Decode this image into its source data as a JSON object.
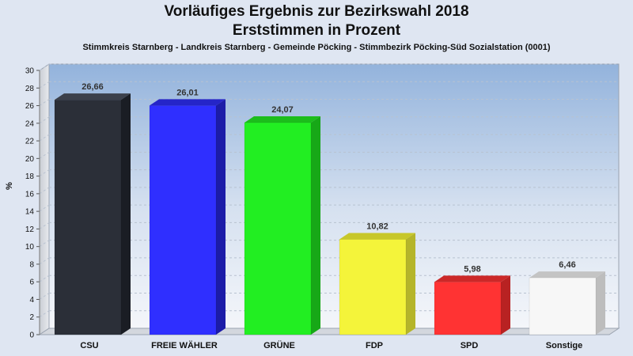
{
  "chart_data": {
    "type": "bar",
    "title": "Vorläufiges Ergebnis zur Bezirkswahl 2018",
    "title2": "Erststimmen in Prozent",
    "subtitle": "Stimmkreis Starnberg - Landkreis Starnberg - Gemeinde Pöcking - Stimmbezirk Pöcking-Süd Sozialstation (0001)",
    "ylabel": "%",
    "ylim": [
      0,
      30
    ],
    "yticks": [
      0,
      2,
      4,
      6,
      8,
      10,
      12,
      14,
      16,
      18,
      20,
      22,
      24,
      26,
      28,
      30
    ],
    "categories": [
      "CSU",
      "FREIE WÄHLER",
      "GRÜNE",
      "FDP",
      "SPD",
      "Sonstige"
    ],
    "values": [
      26.66,
      26.01,
      24.07,
      10.82,
      5.98,
      6.46
    ],
    "value_labels": [
      "26,66",
      "26,01",
      "24,07",
      "10,82",
      "5,98",
      "6,46"
    ],
    "colors": [
      "#2b2f38",
      "#2f2fff",
      "#22ee22",
      "#f4f43a",
      "#ff3333",
      "#f7f7f7"
    ],
    "side_colors": [
      "#1a1d24",
      "#1c1ca8",
      "#17a817",
      "#b5b52a",
      "#b82222",
      "#bdbdbd"
    ],
    "top_colors": [
      "#3b404b",
      "#2525c8",
      "#1cbd1c",
      "#c7c72a",
      "#cc2828",
      "#c4c4c4"
    ],
    "grid": true,
    "legend": false
  }
}
